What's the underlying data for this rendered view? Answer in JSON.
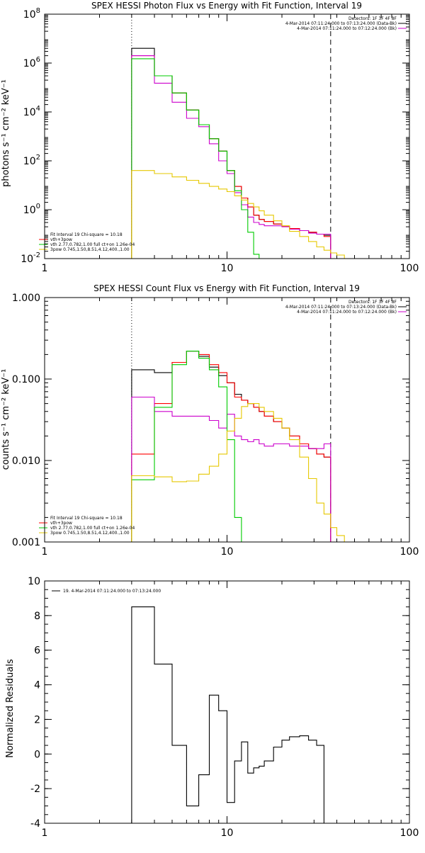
{
  "chart_data": [
    {
      "type": "line",
      "title": "SPEX HESSI Photon Flux vs Energy with Fit Function, Interval 19",
      "ylabel": "photons s⁻¹ cm⁻² keV⁻¹",
      "xlabel": "",
      "xscale": "log",
      "yscale": "log",
      "xlim": [
        1,
        100
      ],
      "ylim": [
        0.01,
        100000000
      ],
      "x_ticks": [
        {
          "v": 1,
          "label": "1"
        },
        {
          "v": 10,
          "label": "10"
        },
        {
          "v": 100,
          "label": "100"
        }
      ],
      "y_ticks": [
        {
          "v": 0.01,
          "base": "10",
          "exp": "-2"
        },
        {
          "v": 1,
          "base": "10",
          "exp": "0"
        },
        {
          "v": 100,
          "base": "10",
          "exp": "2"
        },
        {
          "v": 10000,
          "base": "10",
          "exp": "4"
        },
        {
          "v": 1000000,
          "base": "10",
          "exp": "6"
        },
        {
          "v": 100000000,
          "base": "10",
          "exp": "8"
        }
      ],
      "fit_range_lines": [
        {
          "x": 3,
          "style": "dotted"
        },
        {
          "x": 37,
          "style": "dashed"
        }
      ],
      "legend_topright": {
        "lines": [
          {
            "text": "Detectors: 1F 3F 4F 8F",
            "color": null
          },
          {
            "text": "4-Mar-2014 07:11:24.000 to 07:13:24.000 (Data-Bk)",
            "color": "#000000"
          },
          {
            "text": "4-Mar-2014 07:11:24.000 to 07:12:24.000 (Bk)",
            "color": "#cc00cc"
          }
        ]
      },
      "legend_bottomleft": {
        "lines": [
          {
            "text": "Fit Interval 19    Chi-square = 10.18",
            "color": null
          },
          {
            "text": "vth+3pow",
            "color": "#ff0000"
          },
          {
            "text": "vth 2.77,0.782,1.00  full ct+on 1.26e-04",
            "color": "#00cc00"
          },
          {
            "text": "3pow 0.745,1.50,8.51,4.12,400.,1.00",
            "color": "#e6c800"
          }
        ]
      },
      "edges": [
        3,
        4,
        5,
        6,
        7,
        8,
        9,
        10,
        11,
        12,
        13,
        14,
        15,
        16,
        18,
        20,
        22,
        25,
        28,
        31,
        34,
        37,
        40,
        44
      ],
      "series": [
        {
          "color": "#000000",
          "values": [
            4000000,
            300000,
            60000,
            12000,
            3000,
            800,
            250,
            40,
            9,
            3,
            1.3,
            0.6,
            0.4,
            0.33,
            0.26,
            0.21,
            0.17,
            0.14,
            0.12,
            0.1,
            0.09
          ]
        },
        {
          "color": "#ff0000",
          "values": [
            2000000,
            300000,
            60000,
            12000,
            3000,
            800,
            250,
            40,
            9,
            3,
            1.3,
            0.6,
            0.4,
            0.33,
            0.26,
            0.21,
            0.17,
            0.14,
            0.12,
            0.1,
            0.08
          ]
        },
        {
          "color": "#cc00cc",
          "values": [
            2000000,
            150000,
            25000,
            5500,
            2500,
            500,
            100,
            30,
            5,
            1.6,
            0.5,
            0.3,
            0.25,
            0.22,
            0.22,
            0.2,
            0.16,
            0.14,
            0.11,
            0.1,
            0.1
          ]
        },
        {
          "color": "#00cc00",
          "values": [
            1500000,
            300000,
            60000,
            12000,
            3000,
            800,
            250,
            40,
            6,
            1,
            0.12,
            0.015,
            0.002
          ]
        },
        {
          "color": "#e6c800",
          "values": [
            40,
            30,
            22,
            16,
            12,
            9,
            7,
            5.5,
            3.7,
            2.5,
            1.8,
            1.3,
            0.9,
            0.6,
            0.35,
            0.22,
            0.13,
            0.08,
            0.05,
            0.03,
            0.022,
            0.017,
            0.014
          ]
        }
      ]
    },
    {
      "type": "line",
      "title": "SPEX HESSI Count Flux vs Energy with Fit Function, Interval 19",
      "ylabel": "counts s⁻¹ cm⁻² keV⁻¹",
      "xlabel": "",
      "xscale": "log",
      "yscale": "log",
      "xlim": [
        1,
        100
      ],
      "ylim": [
        0.001,
        1.0
      ],
      "x_ticks": [
        {
          "v": 1,
          "label": "1"
        },
        {
          "v": 10,
          "label": "10"
        },
        {
          "v": 100,
          "label": "100"
        }
      ],
      "y_ticks": [
        {
          "v": 0.001,
          "label": "0.001"
        },
        {
          "v": 0.01,
          "label": "0.010"
        },
        {
          "v": 0.1,
          "label": "0.100"
        },
        {
          "v": 1.0,
          "label": "1.000"
        }
      ],
      "fit_range_lines": [
        {
          "x": 3,
          "style": "dotted"
        },
        {
          "x": 37,
          "style": "dashed"
        }
      ],
      "legend_topright": {
        "lines": [
          {
            "text": "Detectors: 1F 3F 4F 8F",
            "color": null
          },
          {
            "text": "4-Mar-2014 07:11:24.000 to 07:13:24.000 (Data-Bk)",
            "color": "#000000"
          },
          {
            "text": "4-Mar-2014 07:11:24.000 to 07:12:24.000 (Bk)",
            "color": "#cc00cc"
          }
        ]
      },
      "legend_bottomleft": {
        "lines": [
          {
            "text": "Fit Interval 19    Chi-square = 10.18",
            "color": null
          },
          {
            "text": "vth+3pow",
            "color": "#ff0000"
          },
          {
            "text": "vth 2.77,0.782,1.00  full ct+on 1.26e-04",
            "color": "#00cc00"
          },
          {
            "text": "3pow 0.745,1.50,8.51,4.12,400.,1.00",
            "color": "#e6c800"
          }
        ]
      },
      "edges": [
        3,
        4,
        5,
        6,
        7,
        8,
        9,
        10,
        11,
        12,
        13,
        14,
        15,
        16,
        18,
        20,
        22,
        25,
        28,
        31,
        34,
        37,
        40,
        44,
        48,
        53
      ],
      "series": [
        {
          "color": "#000000",
          "values": [
            0.13,
            0.12,
            0.16,
            0.22,
            0.19,
            0.14,
            0.11,
            0.09,
            0.065,
            0.055,
            0.05,
            0.045,
            0.04,
            0.035,
            0.03,
            0.025,
            0.02,
            0.016,
            0.014,
            0.012,
            0.011
          ]
        },
        {
          "color": "#ff0000",
          "values": [
            0.012,
            0.05,
            0.16,
            0.22,
            0.2,
            0.15,
            0.12,
            0.09,
            0.06,
            0.055,
            0.05,
            0.045,
            0.04,
            0.035,
            0.03,
            0.025,
            0.02,
            0.016,
            0.014,
            0.012,
            0.011
          ]
        },
        {
          "color": "#cc00cc",
          "values": [
            0.06,
            0.04,
            0.035,
            0.035,
            0.035,
            0.031,
            0.025,
            0.037,
            0.02,
            0.018,
            0.017,
            0.018,
            0.016,
            0.015,
            0.016,
            0.016,
            0.015,
            0.015,
            0.014,
            0.014,
            0.016
          ]
        },
        {
          "color": "#00cc00",
          "values": [
            0.0058,
            0.045,
            0.15,
            0.22,
            0.18,
            0.13,
            0.08,
            0.018,
            0.002,
            0.0005
          ]
        },
        {
          "color": "#e6c800",
          "values": [
            0.0065,
            0.0063,
            0.0055,
            0.0056,
            0.0068,
            0.0085,
            0.012,
            0.023,
            0.033,
            0.046,
            0.05,
            0.05,
            0.045,
            0.04,
            0.033,
            0.025,
            0.018,
            0.011,
            0.006,
            0.003,
            0.0022,
            0.0015,
            0.0012,
            0.001,
            0.0007
          ]
        }
      ]
    },
    {
      "type": "line",
      "title": "",
      "ylabel": "Normalized Residuals",
      "xlabel": "",
      "xscale": "log",
      "yscale": "linear",
      "xlim": [
        1,
        100
      ],
      "ylim": [
        -4,
        10
      ],
      "x_ticks": [
        {
          "v": 1,
          "label": "1"
        },
        {
          "v": 10,
          "label": "10"
        },
        {
          "v": 100,
          "label": "100"
        }
      ],
      "y_ticks": [
        {
          "v": -4,
          "label": "-4"
        },
        {
          "v": -2,
          "label": "-2"
        },
        {
          "v": 0,
          "label": "0"
        },
        {
          "v": 2,
          "label": "2"
        },
        {
          "v": 4,
          "label": "4"
        },
        {
          "v": 6,
          "label": "6"
        },
        {
          "v": 8,
          "label": "8"
        },
        {
          "v": 10,
          "label": "10"
        }
      ],
      "legend_topleft": {
        "lines": [
          {
            "text": "19.  4-Mar-2014 07:11:24.000 to 07:13:24.000",
            "color": "#000000"
          }
        ]
      },
      "edges": [
        3,
        4,
        5,
        6,
        7,
        8,
        9,
        10,
        11,
        12,
        13,
        14,
        15,
        16,
        18,
        20,
        22,
        25,
        28,
        31,
        34,
        37
      ],
      "series": [
        {
          "color": "#000000",
          "values": [
            8.5,
            5.2,
            0.5,
            -3.0,
            -1.2,
            3.4,
            2.5,
            -2.8,
            -0.4,
            0.7,
            -1.1,
            -0.8,
            -0.7,
            -0.4,
            0.4,
            0.8,
            1.0,
            1.05,
            0.8,
            0.5
          ]
        }
      ]
    }
  ]
}
